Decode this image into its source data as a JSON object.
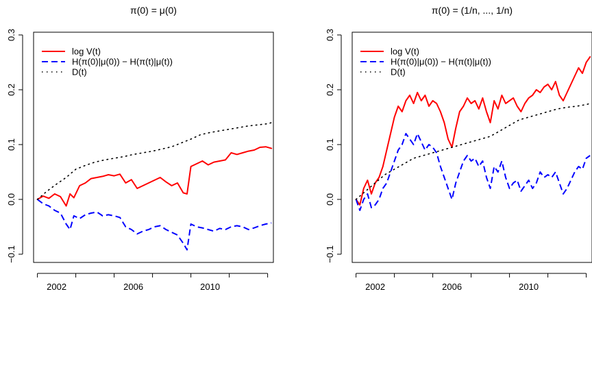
{
  "chart_data": [
    {
      "type": "line",
      "title": "π(0) = μ(0)",
      "xlabel": "",
      "ylabel": "",
      "xlim": [
        2000.8,
        2013.3
      ],
      "ylim": [
        -0.115,
        0.305
      ],
      "x_ticks": [
        2002,
        2006,
        2010
      ],
      "y_ticks": [
        -0.1,
        0.0,
        0.1,
        0.2,
        0.3
      ],
      "x_tick_labels": [
        "2002",
        "2006",
        "2010"
      ],
      "y_tick_labels": [
        "−0.1",
        "0.0",
        "0.1",
        "0.2",
        "0.3"
      ],
      "legend": {
        "position": "top-left",
        "entries": [
          "log V(t)",
          "H(π(0)|μ(0)) − H(π(t)|μ(t))",
          "D(t)"
        ]
      },
      "series": [
        {
          "name": "log V(t)",
          "color": "#ff0000",
          "dash": "solid",
          "x": [
            2001.0,
            2001.3,
            2001.6,
            2001.9,
            2002.2,
            2002.5,
            2002.7,
            2002.9,
            2003.2,
            2003.5,
            2003.8,
            2004.1,
            2004.4,
            2004.7,
            2005.0,
            2005.3,
            2005.6,
            2005.9,
            2006.2,
            2006.5,
            2006.8,
            2007.1,
            2007.4,
            2007.7,
            2008.0,
            2008.3,
            2008.6,
            2008.8,
            2009.0,
            2009.3,
            2009.6,
            2009.9,
            2010.2,
            2010.5,
            2010.8,
            2011.1,
            2011.4,
            2011.7,
            2012.0,
            2012.3,
            2012.6,
            2012.9,
            2013.2
          ],
          "y": [
            0.0,
            0.006,
            0.002,
            0.01,
            0.005,
            -0.012,
            0.01,
            0.003,
            0.025,
            0.03,
            0.038,
            0.04,
            0.042,
            0.045,
            0.043,
            0.046,
            0.03,
            0.036,
            0.02,
            0.025,
            0.03,
            0.035,
            0.04,
            0.032,
            0.025,
            0.03,
            0.012,
            0.01,
            0.06,
            0.065,
            0.07,
            0.063,
            0.068,
            0.07,
            0.072,
            0.085,
            0.082,
            0.085,
            0.088,
            0.09,
            0.095,
            0.096,
            0.093
          ]
        },
        {
          "name": "H(π(0)|μ(0)) − H(π(t)|μ(t))",
          "color": "#0000ff",
          "dash": "dashed",
          "x": [
            2001.0,
            2001.3,
            2001.6,
            2001.9,
            2002.2,
            2002.5,
            2002.7,
            2002.9,
            2003.2,
            2003.5,
            2003.8,
            2004.1,
            2004.4,
            2004.7,
            2005.0,
            2005.3,
            2005.6,
            2005.9,
            2006.2,
            2006.5,
            2006.8,
            2007.1,
            2007.4,
            2007.7,
            2008.0,
            2008.3,
            2008.6,
            2008.8,
            2009.0,
            2009.3,
            2009.6,
            2009.9,
            2010.2,
            2010.5,
            2010.8,
            2011.1,
            2011.4,
            2011.7,
            2012.0,
            2012.3,
            2012.6,
            2012.9,
            2013.2
          ],
          "y": [
            0.0,
            -0.008,
            -0.012,
            -0.02,
            -0.025,
            -0.045,
            -0.055,
            -0.03,
            -0.035,
            -0.028,
            -0.025,
            -0.023,
            -0.03,
            -0.028,
            -0.03,
            -0.033,
            -0.05,
            -0.055,
            -0.063,
            -0.058,
            -0.055,
            -0.05,
            -0.048,
            -0.055,
            -0.06,
            -0.065,
            -0.08,
            -0.092,
            -0.045,
            -0.05,
            -0.052,
            -0.055,
            -0.058,
            -0.053,
            -0.055,
            -0.05,
            -0.048,
            -0.05,
            -0.055,
            -0.052,
            -0.048,
            -0.045,
            -0.043
          ]
        },
        {
          "name": "D(t)",
          "color": "#000000",
          "dash": "dotted",
          "x": [
            2001.0,
            2001.5,
            2002.0,
            2002.5,
            2003.0,
            2003.5,
            2004.0,
            2004.5,
            2005.0,
            2005.5,
            2006.0,
            2006.5,
            2007.0,
            2007.5,
            2008.0,
            2008.5,
            2009.0,
            2009.5,
            2010.0,
            2010.5,
            2011.0,
            2011.5,
            2012.0,
            2012.5,
            2013.0,
            2013.2
          ],
          "y": [
            0.0,
            0.015,
            0.028,
            0.04,
            0.055,
            0.062,
            0.068,
            0.072,
            0.075,
            0.078,
            0.082,
            0.085,
            0.088,
            0.092,
            0.096,
            0.103,
            0.11,
            0.118,
            0.122,
            0.125,
            0.128,
            0.131,
            0.134,
            0.136,
            0.138,
            0.14
          ]
        }
      ]
    },
    {
      "type": "line",
      "title": "π(0) = (1/n, ..., 1/n)",
      "xlabel": "",
      "ylabel": "",
      "xlim": [
        2000.8,
        2013.3
      ],
      "ylim": [
        -0.115,
        0.305
      ],
      "x_ticks": [
        2002,
        2006,
        2010
      ],
      "y_ticks": [
        -0.1,
        0.0,
        0.1,
        0.2,
        0.3
      ],
      "x_tick_labels": [
        "2002",
        "2006",
        "2010"
      ],
      "y_tick_labels": [
        "−0.1",
        "0.0",
        "0.1",
        "0.2",
        "0.3"
      ],
      "legend": {
        "position": "top-left",
        "entries": [
          "log V(t)",
          "H(π(0)|μ(0)) − H(π(t)|μ(t))",
          "D(t)"
        ]
      },
      "series": [
        {
          "name": "log V(t)",
          "color": "#ff0000",
          "dash": "solid",
          "x": [
            2001.0,
            2001.2,
            2001.4,
            2001.6,
            2001.8,
            2002.0,
            2002.2,
            2002.4,
            2002.6,
            2002.8,
            2003.0,
            2003.2,
            2003.4,
            2003.6,
            2003.8,
            2004.0,
            2004.2,
            2004.4,
            2004.6,
            2004.8,
            2005.0,
            2005.2,
            2005.4,
            2005.6,
            2005.8,
            2006.0,
            2006.2,
            2006.4,
            2006.6,
            2006.8,
            2007.0,
            2007.2,
            2007.4,
            2007.6,
            2007.8,
            2008.0,
            2008.2,
            2008.4,
            2008.6,
            2008.8,
            2009.0,
            2009.2,
            2009.4,
            2009.6,
            2009.8,
            2010.0,
            2010.2,
            2010.4,
            2010.6,
            2010.8,
            2011.0,
            2011.2,
            2011.4,
            2011.6,
            2011.8,
            2012.0,
            2012.2,
            2012.4,
            2012.6,
            2012.8,
            2013.0,
            2013.2
          ],
          "y": [
            0.0,
            -0.01,
            0.02,
            0.035,
            0.01,
            0.03,
            0.04,
            0.06,
            0.09,
            0.12,
            0.15,
            0.17,
            0.16,
            0.18,
            0.19,
            0.175,
            0.195,
            0.18,
            0.19,
            0.17,
            0.18,
            0.175,
            0.16,
            0.14,
            0.11,
            0.095,
            0.13,
            0.16,
            0.17,
            0.185,
            0.175,
            0.18,
            0.165,
            0.185,
            0.16,
            0.14,
            0.18,
            0.165,
            0.19,
            0.175,
            0.18,
            0.185,
            0.17,
            0.16,
            0.175,
            0.185,
            0.19,
            0.2,
            0.195,
            0.205,
            0.21,
            0.2,
            0.215,
            0.19,
            0.18,
            0.195,
            0.21,
            0.225,
            0.24,
            0.23,
            0.25,
            0.26
          ]
        },
        {
          "name": "H(π(0)|μ(0)) − H(π(t)|μ(t))",
          "color": "#0000ff",
          "dash": "dashed",
          "x": [
            2001.0,
            2001.2,
            2001.4,
            2001.6,
            2001.8,
            2002.0,
            2002.2,
            2002.4,
            2002.6,
            2002.8,
            2003.0,
            2003.2,
            2003.4,
            2003.6,
            2003.8,
            2004.0,
            2004.2,
            2004.4,
            2004.6,
            2004.8,
            2005.0,
            2005.2,
            2005.4,
            2005.6,
            2005.8,
            2006.0,
            2006.2,
            2006.4,
            2006.6,
            2006.8,
            2007.0,
            2007.2,
            2007.4,
            2007.6,
            2007.8,
            2008.0,
            2008.2,
            2008.4,
            2008.6,
            2008.8,
            2009.0,
            2009.2,
            2009.4,
            2009.6,
            2009.8,
            2010.0,
            2010.2,
            2010.4,
            2010.6,
            2010.8,
            2011.0,
            2011.2,
            2011.4,
            2011.6,
            2011.8,
            2012.0,
            2012.2,
            2012.4,
            2012.6,
            2012.8,
            2013.0,
            2013.2
          ],
          "y": [
            0.0,
            -0.02,
            0.0,
            0.01,
            -0.015,
            -0.01,
            0.0,
            0.02,
            0.03,
            0.05,
            0.07,
            0.09,
            0.1,
            0.12,
            0.11,
            0.1,
            0.12,
            0.105,
            0.09,
            0.1,
            0.095,
            0.085,
            0.06,
            0.04,
            0.02,
            0.0,
            0.03,
            0.05,
            0.07,
            0.08,
            0.07,
            0.075,
            0.06,
            0.07,
            0.04,
            0.02,
            0.06,
            0.05,
            0.07,
            0.04,
            0.02,
            0.03,
            0.035,
            0.015,
            0.025,
            0.035,
            0.02,
            0.03,
            0.05,
            0.04,
            0.045,
            0.04,
            0.05,
            0.03,
            0.01,
            0.02,
            0.035,
            0.05,
            0.06,
            0.055,
            0.075,
            0.08
          ]
        },
        {
          "name": "D(t)",
          "color": "#000000",
          "dash": "dotted",
          "x": [
            2001.0,
            2001.5,
            2002.0,
            2002.5,
            2003.0,
            2003.5,
            2004.0,
            2004.5,
            2005.0,
            2005.5,
            2006.0,
            2006.5,
            2007.0,
            2007.5,
            2008.0,
            2008.5,
            2009.0,
            2009.5,
            2010.0,
            2010.5,
            2011.0,
            2011.5,
            2012.0,
            2012.5,
            2013.0,
            2013.2
          ],
          "y": [
            0.0,
            0.015,
            0.03,
            0.045,
            0.055,
            0.065,
            0.075,
            0.08,
            0.085,
            0.09,
            0.095,
            0.1,
            0.105,
            0.11,
            0.115,
            0.125,
            0.135,
            0.145,
            0.15,
            0.155,
            0.16,
            0.165,
            0.168,
            0.17,
            0.173,
            0.175
          ]
        }
      ]
    }
  ]
}
